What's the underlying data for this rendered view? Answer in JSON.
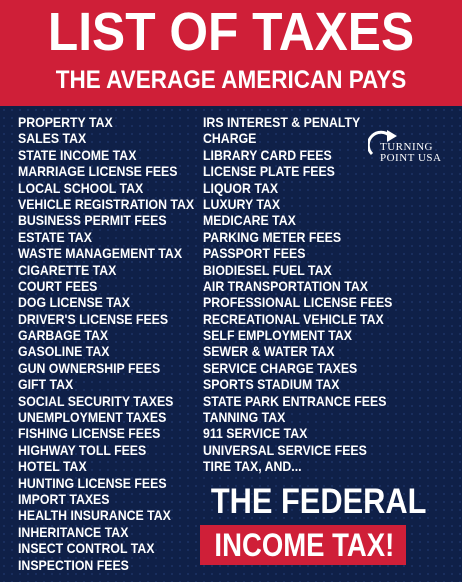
{
  "header": {
    "title": "LIST OF TAXES",
    "subtitle": "THE AVERAGE AMERICAN PAYS"
  },
  "logo": {
    "line1": "TURNING",
    "line2": "POINT USA",
    "icon": "turning-arrow-icon"
  },
  "left_column": [
    "PROPERTY TAX",
    "SALES TAX",
    "STATE INCOME TAX",
    "MARRIAGE LICENSE FEES",
    "LOCAL SCHOOL TAX",
    "VEHICLE REGISTRATION TAX",
    "BUSINESS PERMIT FEES",
    "ESTATE TAX",
    "WASTE MANAGEMENT TAX",
    "CIGARETTE TAX",
    "COURT FEES",
    "DOG LICENSE TAX",
    "DRIVER'S LICENSE FEES",
    "GARBAGE TAX",
    "GASOLINE TAX",
    "GUN OWNERSHIP FEES",
    "GIFT TAX",
    "SOCIAL SECURITY TAXES",
    "UNEMPLOYMENT TAXES",
    "FISHING LICENSE FEES",
    "HIGHWAY TOLL FEES",
    "HOTEL TAX",
    "HUNTING LICENSE FEES",
    "IMPORT TAXES",
    "HEALTH INSURANCE TAX",
    "INHERITANCE TAX",
    "INSECT CONTROL TAX",
    "INSPECTION FEES"
  ],
  "right_column": [
    "IRS INTEREST & PENALTY",
    "CHARGE",
    "LIBRARY CARD FEES",
    "LICENSE PLATE FEES",
    "LIQUOR TAX",
    "LUXURY TAX",
    "MEDICARE TAX",
    "PARKING METER FEES",
    "PASSPORT FEES",
    "BIODIESEL FUEL TAX",
    "AIR TRANSPORTATION TAX",
    "PROFESSIONAL LICENSE FEES",
    "RECREATIONAL VEHICLE TAX",
    "SELF EMPLOYMENT TAX",
    "SEWER & WATER TAX",
    "SERVICE CHARGE TAXES",
    "SPORTS STADIUM TAX",
    "STATE PARK ENTRANCE FEES",
    "TANNING TAX",
    "911 SERVICE TAX",
    "UNIVERSAL SERVICE FEES",
    "TIRE TAX, AND..."
  ],
  "footer": {
    "line1": "THE FEDERAL",
    "line2": "INCOME TAX!"
  },
  "colors": {
    "red": "#cf1f38",
    "navy": "#0f2048",
    "text": "#ffffff"
  }
}
